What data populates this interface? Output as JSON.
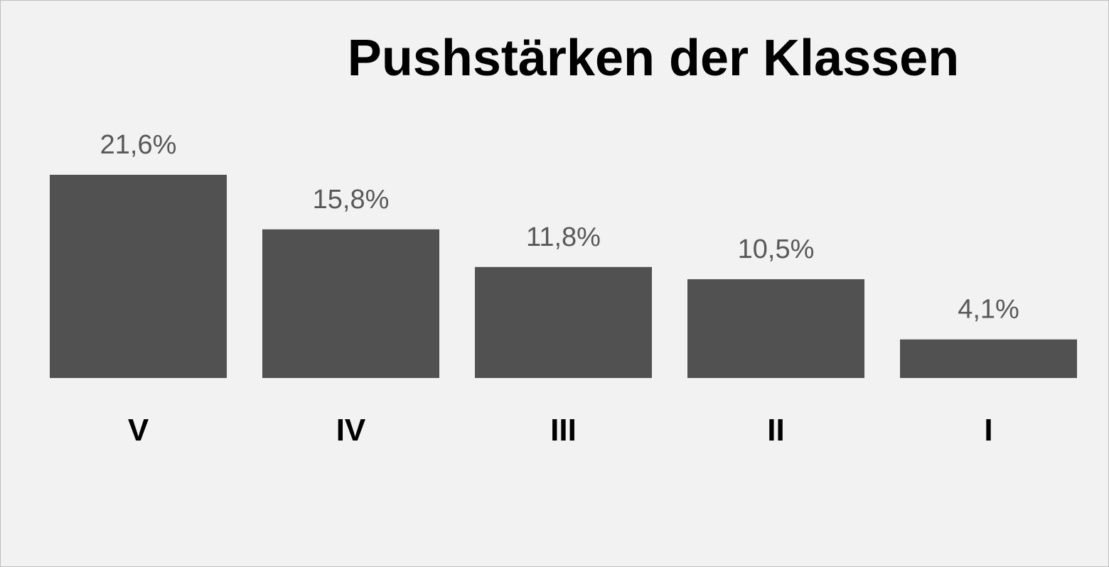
{
  "chart_data": {
    "type": "bar",
    "title": "Pushstärken der Klassen",
    "categories": [
      "V",
      "IV",
      "III",
      "II",
      "I"
    ],
    "values": [
      21.6,
      15.8,
      11.8,
      10.5,
      4.1
    ],
    "value_labels": [
      "21,6%",
      "15,8%",
      "11,8%",
      "10,5%",
      "4,1%"
    ],
    "unit": "%",
    "xlabel": "",
    "ylabel": "",
    "ylim": [
      0,
      21.6
    ],
    "grid": false,
    "legend": "none",
    "bar_color": "#515151",
    "background_color": "#f2f2f2"
  }
}
